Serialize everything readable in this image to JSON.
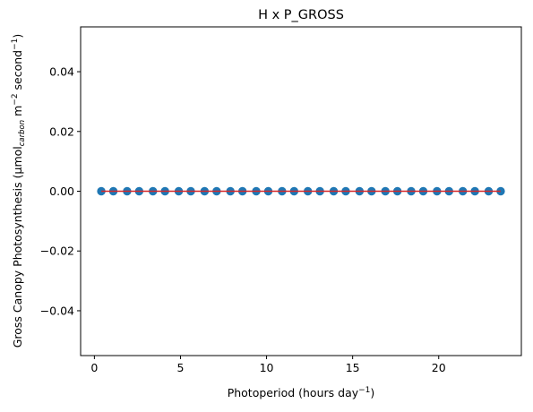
{
  "chart_data": {
    "type": "scatter",
    "title": "H x P_GROSS",
    "xlabel": {
      "main": "Photoperiod (hours day",
      "sup": "−1",
      "tail": ")"
    },
    "ylabel": {
      "main": "Gross Canopy Photosynthesis (µmol",
      "sub": "carbon",
      "mid1": " m",
      "sup1": "−2",
      "mid2": " second",
      "sup2": "−1",
      "tail": ")"
    },
    "xlim": [
      -0.8,
      24.8
    ],
    "ylim": [
      -0.055,
      0.055
    ],
    "xticks": [
      0,
      5,
      10,
      15,
      20
    ],
    "xtick_labels": [
      "0",
      "5",
      "10",
      "15",
      "20"
    ],
    "yticks": [
      0.04,
      0.02,
      0.0,
      -0.02,
      -0.04
    ],
    "ytick_labels": [
      "0.04",
      "0.02",
      "0.00",
      "−0.02",
      "−0.04"
    ],
    "grid": false,
    "x": [
      0.4,
      1.1,
      1.9,
      2.6,
      3.4,
      4.1,
      4.9,
      5.6,
      6.4,
      7.1,
      7.9,
      8.6,
      9.4,
      10.1,
      10.9,
      11.6,
      12.4,
      13.1,
      13.9,
      14.6,
      15.4,
      16.1,
      16.9,
      17.6,
      18.4,
      19.1,
      19.9,
      20.6,
      21.4,
      22.1,
      22.9,
      23.6
    ],
    "y": [
      0,
      0,
      0,
      0,
      0,
      0,
      0,
      0,
      0,
      0,
      0,
      0,
      0,
      0,
      0,
      0,
      0,
      0,
      0,
      0,
      0,
      0,
      0,
      0,
      0,
      0,
      0,
      0,
      0,
      0,
      0,
      0
    ],
    "fit_line": {
      "x": [
        0.4,
        23.6
      ],
      "y": [
        0,
        0
      ]
    },
    "colors": {
      "points": "#1f77b4",
      "fit_line": "#d62728",
      "axes": "#000000"
    }
  }
}
